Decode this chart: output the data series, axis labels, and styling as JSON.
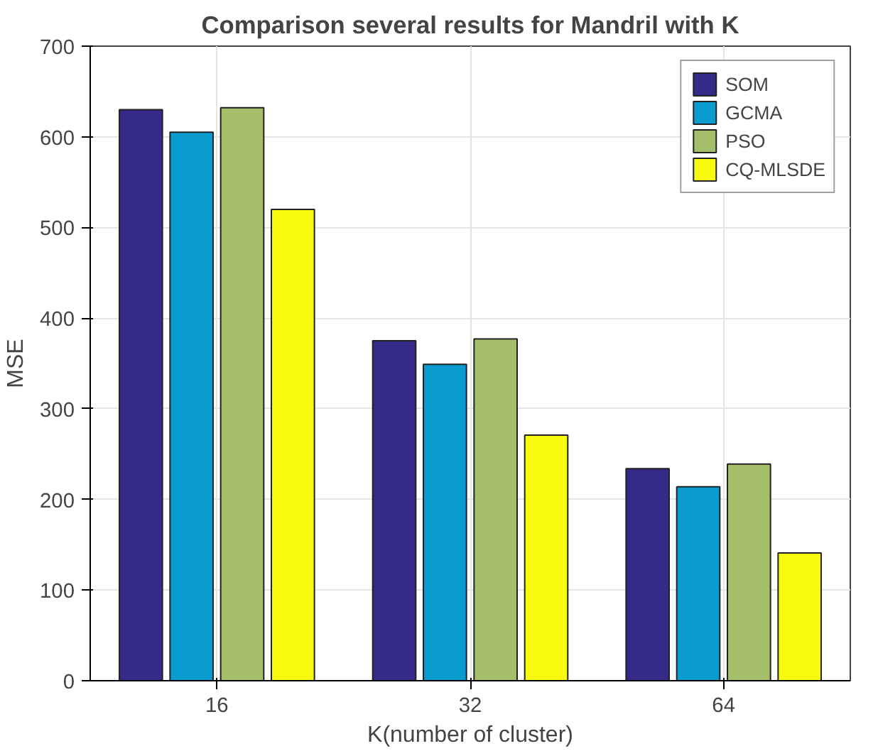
{
  "chart_data": {
    "type": "bar",
    "title": "Comparison several results for Mandril with K",
    "xlabel": "K(number of cluster)",
    "ylabel": "MSE",
    "categories": [
      "16",
      "32",
      "64"
    ],
    "series": [
      {
        "name": "SOM",
        "color": "#352a87",
        "values": [
          630,
          375,
          234
        ]
      },
      {
        "name": "GCMA",
        "color": "#0a9ccf",
        "values": [
          605,
          349,
          214
        ]
      },
      {
        "name": "PSO",
        "color": "#a5be6a",
        "values": [
          632,
          377,
          239
        ]
      },
      {
        "name": "CQ-MLSDE",
        "color": "#f8fa0d",
        "values": [
          520,
          271,
          141
        ]
      }
    ],
    "ylim": [
      0,
      700
    ],
    "yticks": [
      0,
      100,
      200,
      300,
      400,
      500,
      600,
      700
    ],
    "grid": true,
    "legend": "top right"
  }
}
